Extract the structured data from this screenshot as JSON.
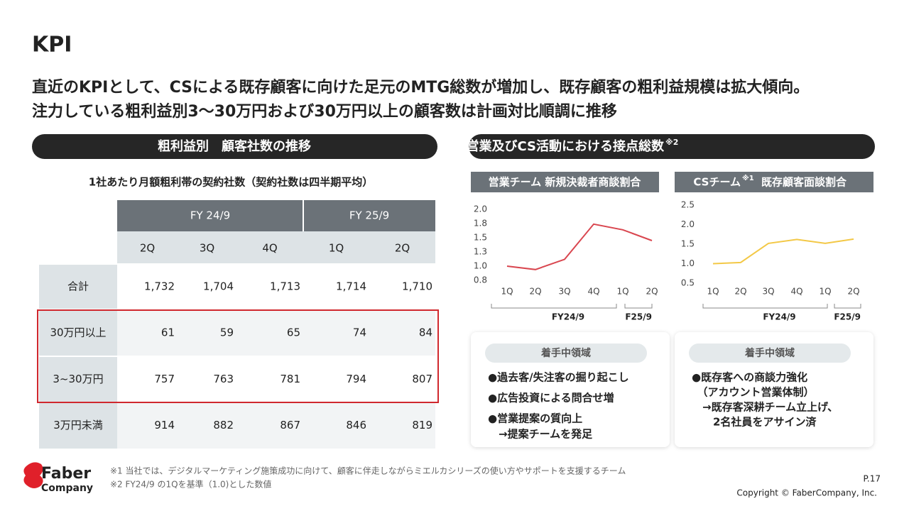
{
  "header": {
    "title": "KPI",
    "lead": [
      "直近のKPIとして、CSによる既存顧客に向けた足元のMTG総数が増加し、既存顧客の粗利益規模は拡大傾向。",
      "注力している粗利益別3〜30万円および30万円以上の顧客数は計画対比順調に推移"
    ]
  },
  "left_panel": {
    "heading": "粗利益別　顧客社数の推移",
    "caption": "1社あたり月額粗利帯の契約社数（契約社数は四半期平均）",
    "table": {
      "groups": [
        "FY 24/9",
        "FY 25/9"
      ],
      "columns": [
        "2Q",
        "3Q",
        "4Q",
        "1Q",
        "2Q"
      ],
      "rows": [
        [
          "合計",
          "1,732",
          "1,704",
          "1,713",
          "1,714",
          "1,710"
        ],
        [
          "30万円以上",
          "61",
          "59",
          "65",
          "74",
          "84"
        ],
        [
          "3~30万円",
          "757",
          "763",
          "781",
          "794",
          "807"
        ],
        [
          "3万円未満",
          "914",
          "882",
          "867",
          "846",
          "819"
        ]
      ]
    }
  },
  "right_panel": {
    "heading": "営業及びCS活動における接点総数",
    "heading_note": "※2",
    "cards": [
      {
        "title": "着手中領域",
        "lines": [
          "●過去客/失注客の掘り起こし",
          "●広告投資による問合せ増",
          "●営業提案の質向上",
          "　→提案チームを発足"
        ]
      },
      {
        "title": "着手中領域",
        "lines": [
          "●既存客への商談力強化",
          "　（アカウント営業体制）",
          "　→既存客深耕チーム立上げ、",
          "　　2名社員をアサイン済"
        ]
      }
    ]
  },
  "chart_data": [
    {
      "type": "line",
      "title": "営業チーム 新規決裁者商談割合",
      "categories": [
        "1Q",
        "2Q",
        "3Q",
        "4Q",
        "1Q",
        "2Q"
      ],
      "category_groups": [
        "FY24/9",
        "F25/9"
      ],
      "values": [
        1.0,
        0.94,
        1.12,
        1.74,
        1.64,
        1.45
      ],
      "color": "#d9464f",
      "ylim": [
        0.75,
        2.0
      ],
      "yticks": [
        {
          "value": 0.75,
          "label": "0.8"
        },
        {
          "value": 1.0,
          "label": "1.0"
        },
        {
          "value": 1.25,
          "label": "1.3"
        },
        1.5,
        {
          "value": 1.75,
          "label": "1.8"
        },
        {
          "value": 2.0,
          "label": "2.0"
        }
      ]
    },
    {
      "type": "line",
      "title": "CSチーム",
      "title_note": "※1",
      "title_suffix": "既存顧客面談割合",
      "categories": [
        "1Q",
        "2Q",
        "3Q",
        "4Q",
        "1Q",
        "2Q"
      ],
      "category_groups": [
        "FY24/9",
        "F25/9"
      ],
      "values": [
        1.0,
        1.03,
        1.52,
        1.62,
        1.52,
        1.63
      ],
      "color": "#f3c846",
      "ylim": [
        0.5,
        2.5
      ],
      "yticks": [
        0.5,
        {
          "value": 1.0,
          "label": "1.0"
        },
        1.5,
        {
          "value": 2.0,
          "label": "2.0"
        },
        2.5
      ]
    }
  ],
  "footer": {
    "logo": [
      "Faber",
      "Company"
    ],
    "notes": [
      "※1 当社では、デジタルマーケティング施策成功に向けて、顧客に伴走しながらミエルカシリーズの使い方やサポートを支援するチーム",
      "※2 FY24/9 の1Qを基準（1.0)とした数値"
    ],
    "page": "P.17",
    "copyright": "Copyright © FaberCompany, Inc."
  }
}
